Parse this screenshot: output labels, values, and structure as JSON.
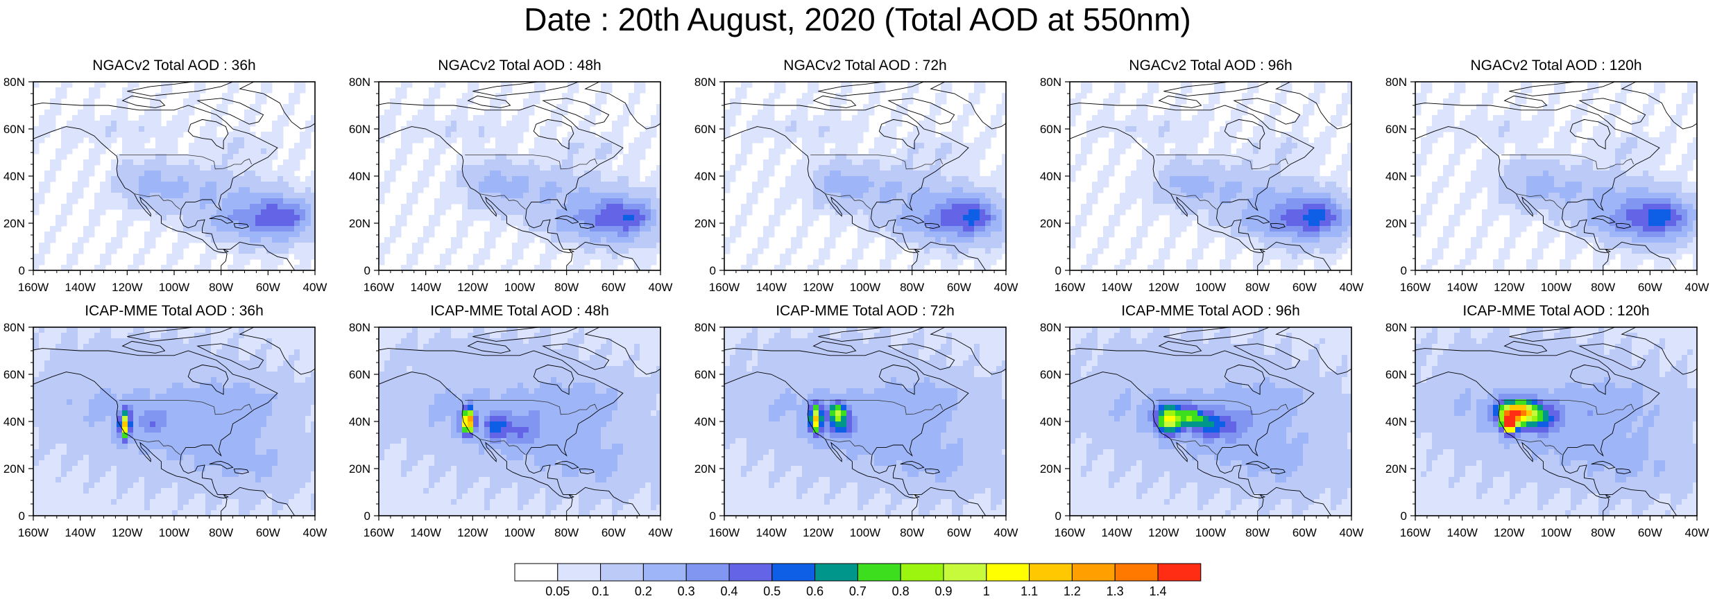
{
  "title": "Date : 20th August, 2020 (Total AOD at 550nm)",
  "panels": [
    {
      "model": "NGACv2",
      "title": "NGACv2 Total AOD : 36h"
    },
    {
      "model": "NGACv2",
      "title": "NGACv2 Total AOD : 48h"
    },
    {
      "model": "NGACv2",
      "title": "NGACv2 Total AOD : 72h"
    },
    {
      "model": "NGACv2",
      "title": "NGACv2 Total AOD : 96h"
    },
    {
      "model": "NGACv2",
      "title": "NGACv2 Total AOD : 120h"
    },
    {
      "model": "ICAP-MME",
      "title": "ICAP-MME Total AOD : 36h"
    },
    {
      "model": "ICAP-MME",
      "title": "ICAP-MME Total AOD : 48h"
    },
    {
      "model": "ICAP-MME",
      "title": "ICAP-MME Total AOD : 72h"
    },
    {
      "model": "ICAP-MME",
      "title": "ICAP-MME Total AOD : 96h"
    },
    {
      "model": "ICAP-MME",
      "title": "ICAP-MME Total AOD : 120h"
    }
  ],
  "axes": {
    "lon_ticks": [
      "160W",
      "140W",
      "120W",
      "100W",
      "80W",
      "60W",
      "40W"
    ],
    "lat_ticks": [
      "0",
      "20N",
      "40N",
      "60N",
      "80N"
    ],
    "lon_range": [
      -160,
      -40
    ],
    "lat_range": [
      0,
      80
    ]
  },
  "colorbar": {
    "labels": [
      "0.05",
      "0.1",
      "0.2",
      "0.3",
      "0.4",
      "0.5",
      "0.6",
      "0.7",
      "0.8",
      "0.9",
      "1",
      "1.1",
      "1.2",
      "1.3",
      "1.4"
    ],
    "colors": [
      "#ffffff",
      "#dce3fc",
      "#bccaf8",
      "#9eb6f7",
      "#8096f0",
      "#6464e6",
      "#0f5fe6",
      "#00968c",
      "#3cde1e",
      "#9bf50f",
      "#c8fa3c",
      "#ffff00",
      "#ffc800",
      "#ffa000",
      "#ff7800",
      "#ff2d14"
    ]
  }
}
